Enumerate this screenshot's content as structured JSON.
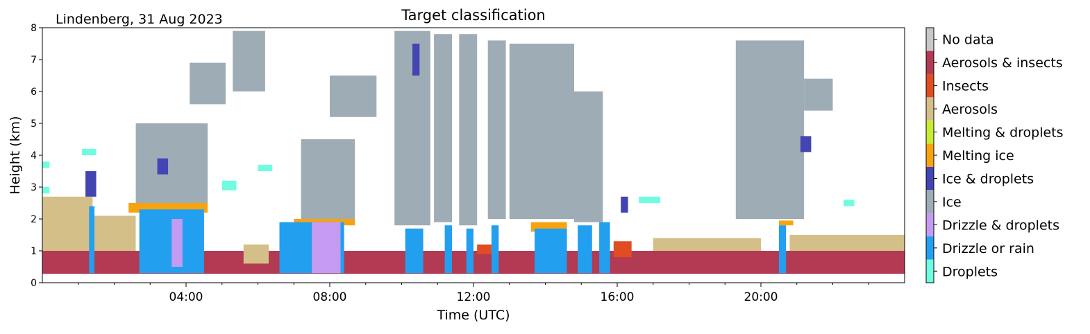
{
  "chart_data": {
    "type": "heatmap",
    "title": "Target classification",
    "site_label": "Lindenberg, 31 Aug 2023",
    "xlabel": "Time (UTC)",
    "ylabel": "Height (km)",
    "xlim_hours": [
      0,
      24
    ],
    "ylim_km": [
      0,
      8
    ],
    "x_ticks": [
      {
        "hour": 4,
        "label": "04:00"
      },
      {
        "hour": 8,
        "label": "08:00"
      },
      {
        "hour": 12,
        "label": "12:00"
      },
      {
        "hour": 16,
        "label": "16:00"
      },
      {
        "hour": 20,
        "label": "20:00"
      }
    ],
    "y_ticks": [
      {
        "km": 0,
        "label": "0"
      },
      {
        "km": 1,
        "label": "1"
      },
      {
        "km": 2,
        "label": "2"
      },
      {
        "km": 3,
        "label": "3"
      },
      {
        "km": 4,
        "label": "4"
      },
      {
        "km": 5,
        "label": "5"
      },
      {
        "km": 6,
        "label": "6"
      },
      {
        "km": 7,
        "label": "7"
      },
      {
        "km": 8,
        "label": "8"
      }
    ],
    "grid": false,
    "legend_position": "colorbar-right",
    "classes": [
      {
        "name": "Droplets",
        "color": "#70fce0"
      },
      {
        "name": "Drizzle or rain",
        "color": "#239ff0"
      },
      {
        "name": "Drizzle & droplets",
        "color": "#c39bf2"
      },
      {
        "name": "Ice",
        "color": "#9eacb6"
      },
      {
        "name": "Ice & droplets",
        "color": "#4345b2"
      },
      {
        "name": "Melting ice",
        "color": "#f7a30f"
      },
      {
        "name": "Melting & droplets",
        "color": "#c6ed32"
      },
      {
        "name": "Aerosols",
        "color": "#d5bf88"
      },
      {
        "name": "Insects",
        "color": "#e04d22"
      },
      {
        "name": "Aerosols & insects",
        "color": "#b23a53"
      },
      {
        "name": "No data",
        "color": "#c8c8c8"
      }
    ],
    "regions": [
      {
        "class": "Aerosols & insects",
        "t": [
          0.0,
          24.0
        ],
        "h": [
          0.28,
          1.0
        ]
      },
      {
        "class": "Aerosols",
        "t": [
          0.0,
          1.4
        ],
        "h": [
          1.0,
          2.7
        ]
      },
      {
        "class": "Aerosols",
        "t": [
          1.4,
          2.6
        ],
        "h": [
          1.0,
          2.1
        ]
      },
      {
        "class": "Aerosols",
        "t": [
          5.6,
          6.3
        ],
        "h": [
          0.6,
          1.2
        ]
      },
      {
        "class": "Aerosols",
        "t": [
          17.0,
          20.0
        ],
        "h": [
          1.0,
          1.4
        ]
      },
      {
        "class": "Aerosols",
        "t": [
          20.8,
          24.0
        ],
        "h": [
          1.0,
          1.5
        ]
      },
      {
        "class": "Droplets",
        "t": [
          0.0,
          0.2
        ],
        "h": [
          2.8,
          3.0
        ]
      },
      {
        "class": "Droplets",
        "t": [
          0.0,
          0.2
        ],
        "h": [
          3.6,
          3.8
        ]
      },
      {
        "class": "Droplets",
        "t": [
          1.1,
          1.5
        ],
        "h": [
          4.0,
          4.2
        ]
      },
      {
        "class": "Droplets",
        "t": [
          5.0,
          5.4
        ],
        "h": [
          2.9,
          3.2
        ]
      },
      {
        "class": "Droplets",
        "t": [
          6.0,
          6.4
        ],
        "h": [
          3.5,
          3.7
        ]
      },
      {
        "class": "Droplets",
        "t": [
          16.6,
          17.2
        ],
        "h": [
          2.5,
          2.7
        ]
      },
      {
        "class": "Droplets",
        "t": [
          22.3,
          22.6
        ],
        "h": [
          2.4,
          2.6
        ]
      },
      {
        "class": "Ice",
        "t": [
          5.3,
          6.2
        ],
        "h": [
          6.0,
          7.9
        ]
      },
      {
        "class": "Ice",
        "t": [
          4.1,
          5.1
        ],
        "h": [
          5.6,
          6.9
        ]
      },
      {
        "class": "Ice",
        "t": [
          2.6,
          4.6
        ],
        "h": [
          2.4,
          5.0
        ]
      },
      {
        "class": "Ice",
        "t": [
          7.2,
          8.7
        ],
        "h": [
          2.0,
          4.5
        ]
      },
      {
        "class": "Ice",
        "t": [
          8.0,
          9.3
        ],
        "h": [
          5.2,
          6.5
        ]
      },
      {
        "class": "Ice",
        "t": [
          9.8,
          10.8
        ],
        "h": [
          1.8,
          7.9
        ]
      },
      {
        "class": "Ice",
        "t": [
          10.9,
          11.4
        ],
        "h": [
          1.9,
          7.8
        ]
      },
      {
        "class": "Ice",
        "t": [
          11.6,
          12.1
        ],
        "h": [
          1.8,
          7.8
        ]
      },
      {
        "class": "Ice",
        "t": [
          12.4,
          12.9
        ],
        "h": [
          2.0,
          7.6
        ]
      },
      {
        "class": "Ice",
        "t": [
          13.0,
          14.8
        ],
        "h": [
          2.0,
          7.5
        ]
      },
      {
        "class": "Ice",
        "t": [
          14.8,
          15.6
        ],
        "h": [
          1.9,
          6.0
        ]
      },
      {
        "class": "Ice",
        "t": [
          19.3,
          21.2
        ],
        "h": [
          2.0,
          7.6
        ]
      },
      {
        "class": "Ice",
        "t": [
          21.2,
          22.0
        ],
        "h": [
          5.4,
          6.4
        ]
      },
      {
        "class": "Ice & droplets",
        "t": [
          1.2,
          1.5
        ],
        "h": [
          2.7,
          3.5
        ]
      },
      {
        "class": "Ice & droplets",
        "t": [
          3.2,
          3.5
        ],
        "h": [
          3.4,
          3.9
        ]
      },
      {
        "class": "Ice & droplets",
        "t": [
          10.3,
          10.5
        ],
        "h": [
          6.5,
          7.5
        ]
      },
      {
        "class": "Ice & droplets",
        "t": [
          16.1,
          16.3
        ],
        "h": [
          2.2,
          2.7
        ]
      },
      {
        "class": "Ice & droplets",
        "t": [
          21.1,
          21.4
        ],
        "h": [
          4.1,
          4.6
        ]
      },
      {
        "class": "Melting ice",
        "t": [
          2.4,
          4.6
        ],
        "h": [
          2.2,
          2.5
        ]
      },
      {
        "class": "Melting ice",
        "t": [
          7.0,
          8.7
        ],
        "h": [
          1.8,
          2.0
        ]
      },
      {
        "class": "Melting ice",
        "t": [
          13.6,
          14.6
        ],
        "h": [
          1.6,
          1.9
        ]
      },
      {
        "class": "Melting ice",
        "t": [
          20.5,
          20.9
        ],
        "h": [
          1.8,
          1.95
        ]
      },
      {
        "class": "Drizzle or rain",
        "t": [
          1.3,
          1.45
        ],
        "h": [
          0.3,
          2.4
        ]
      },
      {
        "class": "Drizzle or rain",
        "t": [
          2.7,
          4.5
        ],
        "h": [
          0.3,
          2.3
        ]
      },
      {
        "class": "Drizzle or rain",
        "t": [
          6.6,
          8.4
        ],
        "h": [
          0.3,
          1.9
        ]
      },
      {
        "class": "Drizzle or rain",
        "t": [
          10.1,
          10.6
        ],
        "h": [
          0.3,
          1.7
        ]
      },
      {
        "class": "Drizzle or rain",
        "t": [
          11.2,
          11.4
        ],
        "h": [
          0.3,
          1.8
        ]
      },
      {
        "class": "Drizzle or rain",
        "t": [
          11.8,
          12.0
        ],
        "h": [
          0.3,
          1.7
        ]
      },
      {
        "class": "Drizzle or rain",
        "t": [
          12.5,
          12.7
        ],
        "h": [
          0.3,
          1.8
        ]
      },
      {
        "class": "Drizzle or rain",
        "t": [
          13.7,
          14.6
        ],
        "h": [
          0.3,
          1.7
        ]
      },
      {
        "class": "Drizzle or rain",
        "t": [
          14.9,
          15.3
        ],
        "h": [
          0.3,
          1.8
        ]
      },
      {
        "class": "Drizzle or rain",
        "t": [
          15.5,
          15.8
        ],
        "h": [
          0.3,
          1.9
        ]
      },
      {
        "class": "Drizzle or rain",
        "t": [
          20.5,
          20.7
        ],
        "h": [
          0.3,
          1.8
        ]
      },
      {
        "class": "Drizzle & droplets",
        "t": [
          3.6,
          3.9
        ],
        "h": [
          0.5,
          2.0
        ]
      },
      {
        "class": "Drizzle & droplets",
        "t": [
          7.5,
          8.3
        ],
        "h": [
          0.3,
          1.9
        ]
      },
      {
        "class": "Insects",
        "t": [
          15.9,
          16.4
        ],
        "h": [
          0.8,
          1.3
        ]
      },
      {
        "class": "Insects",
        "t": [
          12.1,
          12.5
        ],
        "h": [
          0.9,
          1.2
        ]
      }
    ]
  }
}
